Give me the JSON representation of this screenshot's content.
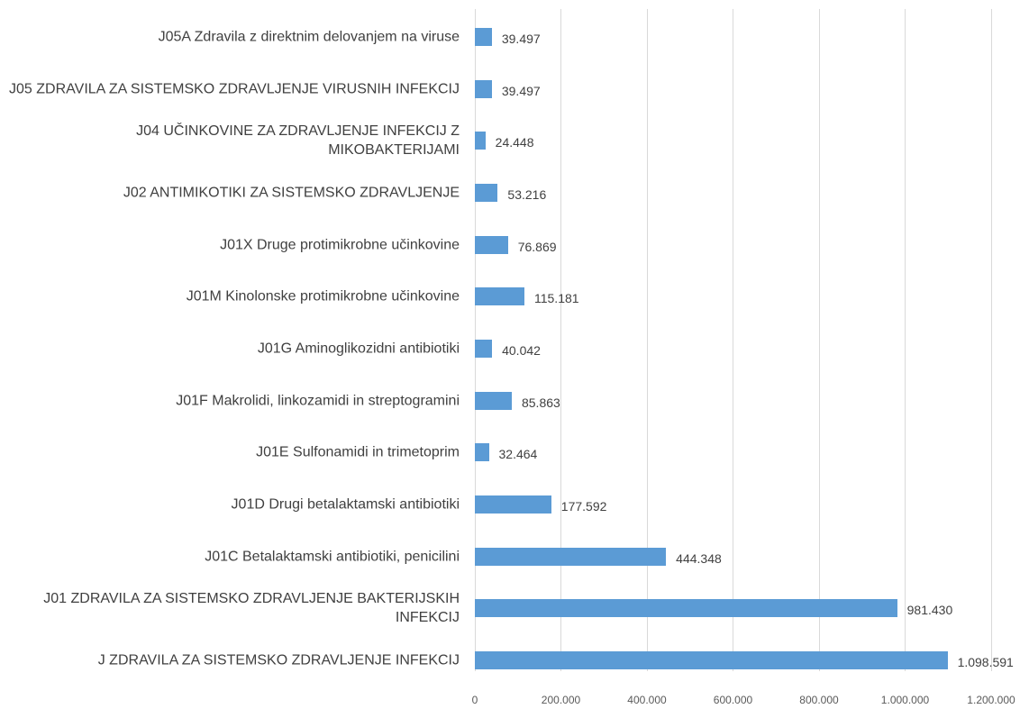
{
  "chart_data": {
    "type": "bar",
    "orientation": "horizontal",
    "categories": [
      "J05A Zdravila z direktnim delovanjem na viruse",
      "J05 ZDRAVILA ZA SISTEMSKO ZDRAVLJENJE VIRUSNIH INFEKCIJ",
      "J04 UČINKOVINE ZA ZDRAVLJENJE INFEKCIJ Z MIKOBAKTERIJAMI",
      "J02 ANTIMIKOTIKI ZA SISTEMSKO ZDRAVLJENJE",
      "J01X Druge protimikrobne učinkovine",
      "J01M Kinolonske protimikrobne učinkovine",
      "J01G Aminoglikozidni antibiotiki",
      "J01F Makrolidi, linkozamidi in streptogramini",
      "J01E Sulfonamidi in trimetoprim",
      "J01D Drugi betalaktamski antibiotiki",
      "J01C Betalaktamski antibiotiki, penicilini",
      "J01 ZDRAVILA ZA SISTEMSKO ZDRAVLJENJE BAKTERIJSKIH INFEKCIJ",
      "J ZDRAVILA ZA SISTEMSKO ZDRAVLJENJE INFEKCIJ"
    ],
    "values": [
      39497,
      39497,
      24448,
      53216,
      76869,
      115181,
      40042,
      85863,
      32464,
      177592,
      444348,
      981430,
      1098591
    ],
    "value_labels": [
      "39.497",
      "39.497",
      "24.448",
      "53.216",
      "76.869",
      "115.181",
      "40.042",
      "85.863",
      "32.464",
      "177.592",
      "444.348",
      "981.430",
      "1.098.591"
    ],
    "color": "#5b9bd5",
    "xlim": [
      0,
      1200000
    ],
    "xticks": [
      0,
      {
        "value": 200000,
        "label": "200.000"
      },
      {
        "value": 400000,
        "label": "400.000"
      },
      {
        "value": 600000,
        "label": "600.000"
      },
      {
        "value": 800000,
        "label": "800.000"
      },
      {
        "value": 1000000,
        "label": "1.000.000"
      },
      {
        "value": 1200000,
        "label": "1.200.000"
      }
    ],
    "grid": true
  }
}
